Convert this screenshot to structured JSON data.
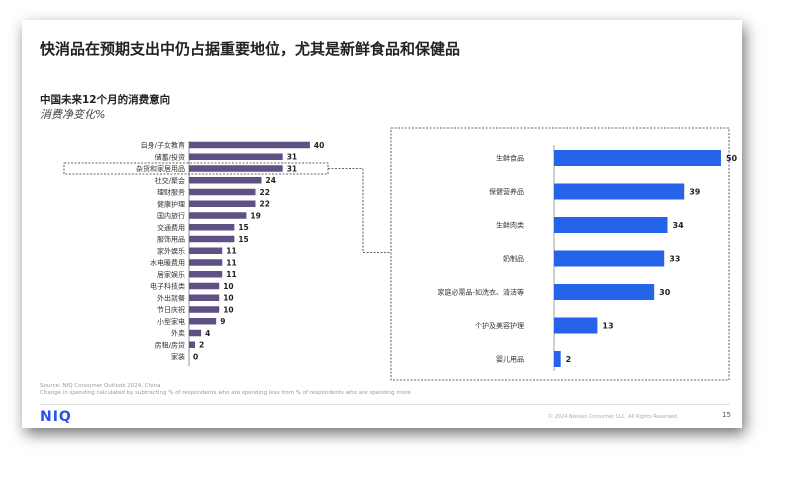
{
  "title": "快消品在预期支出中仍占据重要地位，尤其是新鲜食品和保健品",
  "subtitle": "中国未来12个月的消费意向",
  "subsubtitle": "消费净变化%",
  "source_line1": "Source: NIQ Consumer Outlook 2024, China",
  "source_line2": "Change in spending calculated by subtracting % of respondents who are spending less from % of respondents who are spending more",
  "logo": "NIQ",
  "copyright": "© 2024 Nielsen Consumer LLC. All Rights Reserved.",
  "page_number": "15",
  "colors": {
    "left_bar": "#5f5184",
    "right_bar": "#2563e8"
  },
  "chart_data": [
    {
      "type": "bar",
      "orientation": "horizontal",
      "categories": [
        "自身/子女教育",
        "储蓄/投资",
        "杂货和家居用品",
        "社交/聚会",
        "理财服务",
        "健康护理",
        "国内旅行",
        "交通费用",
        "服饰用品",
        "家外娱乐",
        "水电暖费用",
        "居家娱乐",
        "电子科技类",
        "外出就餐",
        "节日庆祝",
        "小型家电",
        "外卖",
        "房租/房贷",
        "家装"
      ],
      "values": [
        40,
        31,
        31,
        24,
        22,
        22,
        19,
        15,
        15,
        11,
        11,
        11,
        10,
        10,
        10,
        9,
        4,
        2,
        0
      ],
      "highlighted_category": "杂货和家居用品",
      "xlim": [
        0,
        45
      ]
    },
    {
      "type": "bar",
      "orientation": "horizontal",
      "categories": [
        "生鲜食品",
        "保健营养品",
        "生鲜肉类",
        "奶制品",
        "家庭必需品-如洗衣、清洁等",
        "个护及美容护理",
        "婴儿用品"
      ],
      "values": [
        50,
        39,
        34,
        33,
        30,
        13,
        2
      ],
      "xlim": [
        0,
        56
      ]
    }
  ]
}
